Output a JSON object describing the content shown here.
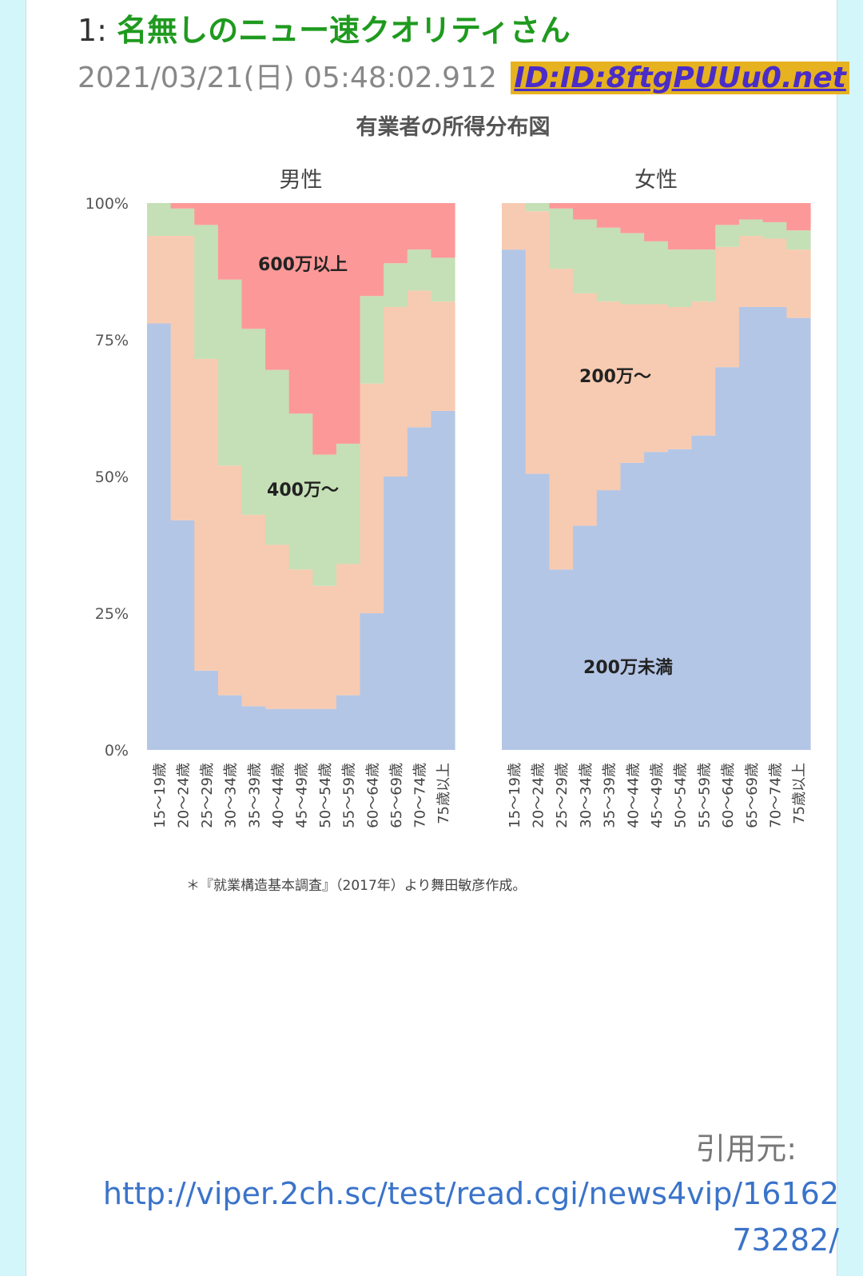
{
  "post": {
    "number": "1:",
    "name": "名無しのニュー速クオリティさん",
    "datetime": "2021/03/21(日) 05:48:02.912",
    "id": "ID:ID:8ftgPUUu0.net"
  },
  "source": {
    "label": "引用元:",
    "url": "http://viper.2ch.sc/test/read.cgi/news4vip/1616273282/"
  },
  "chart_data": {
    "type": "area",
    "title": "有業者の所得分布図",
    "footnote": "＊『就業構造基本調査』（2017年）より舞田敏彦作成。",
    "y_ticks": [
      "100%",
      "75%",
      "50%",
      "25%",
      "0%"
    ],
    "ylim": [
      0,
      100
    ],
    "categories": [
      "15〜19歳",
      "20〜24歳",
      "25〜29歳",
      "30〜34歳",
      "35〜39歳",
      "40〜44歳",
      "45〜49歳",
      "50〜54歳",
      "55〜59歳",
      "60〜64歳",
      "65〜69歳",
      "70〜74歳",
      "75歳以上"
    ],
    "colors": {
      "under200": "#b4c6e6",
      "200": "#f7cbb1",
      "400": "#c5e0b6",
      "600": "#fc9998"
    },
    "panels": [
      {
        "name": "男性",
        "cumulative": {
          "under200": [
            78,
            42,
            14.5,
            10,
            8,
            7.5,
            7.5,
            7.5,
            10,
            25,
            50,
            59,
            62
          ],
          "to400": [
            94,
            94,
            71.5,
            52,
            43,
            37.5,
            33,
            30,
            34,
            67,
            81,
            84,
            82
          ],
          "to600": [
            100,
            99,
            96,
            86,
            77,
            69.5,
            61.5,
            54,
            56,
            83,
            89,
            91.5,
            90
          ]
        },
        "labels": [
          {
            "text": "600万以上"
          },
          {
            "text": "400万〜"
          }
        ]
      },
      {
        "name": "女性",
        "cumulative": {
          "under200": [
            91.5,
            50.5,
            33,
            41,
            47.5,
            52.5,
            54.5,
            55,
            57.5,
            70,
            81,
            81,
            79
          ],
          "to400": [
            100,
            98.5,
            88,
            83.5,
            82,
            81.5,
            81.5,
            81,
            82,
            92,
            94,
            93.5,
            91.5
          ],
          "to600": [
            100,
            100,
            99,
            97,
            95.5,
            94.5,
            93,
            91.5,
            91.5,
            96,
            97,
            96.5,
            95
          ]
        },
        "labels": [
          {
            "text": "200万〜"
          },
          {
            "text": "200万未満"
          }
        ]
      }
    ]
  }
}
